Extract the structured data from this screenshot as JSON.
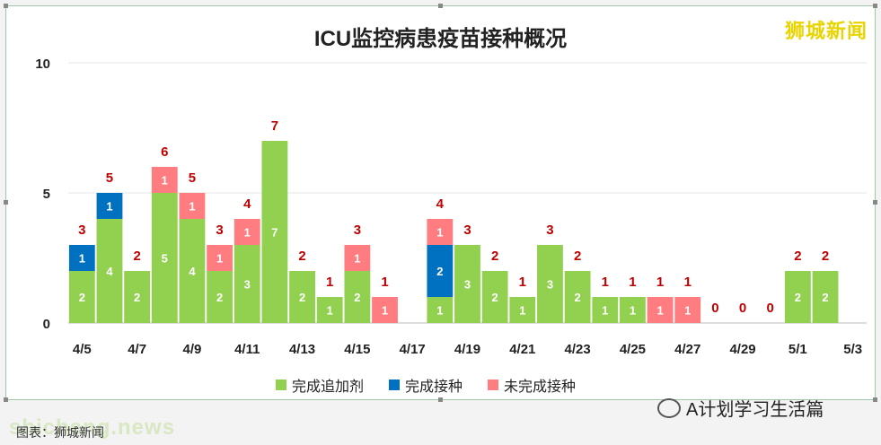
{
  "page": {
    "brand_text": "狮城新闻",
    "wechat_text": "A计划学习生活篇",
    "watermark_text": "shicheng.news",
    "watermark_caption": "图表：狮城新闻"
  },
  "colors": {
    "booster": "#92d050",
    "complete": "#0070c0",
    "incomplete": "#ff7c80",
    "total_label": "#c00000",
    "axis_text": "#222222",
    "grid": "#e6e6e6"
  },
  "chart_data": {
    "type": "bar",
    "stacked": true,
    "title": "ICU监控病患疫苗接种概况",
    "ylim": [
      0,
      10
    ],
    "yticks": [
      0,
      5,
      10
    ],
    "grid": true,
    "legend_position": "bottom",
    "categories": [
      "4/5",
      "4/6",
      "4/7",
      "4/8",
      "4/9",
      "4/10",
      "4/11",
      "4/12",
      "4/13",
      "4/14",
      "4/15",
      "4/16",
      "4/17",
      "4/18",
      "4/19",
      "4/20",
      "4/21",
      "4/22",
      "4/23",
      "4/24",
      "4/25",
      "4/26",
      "4/27",
      "4/28",
      "4/29",
      "4/30",
      "5/1",
      "5/2",
      "5/3"
    ],
    "x_tick_labels": [
      "4/5",
      "4/7",
      "4/9",
      "4/11",
      "4/13",
      "4/15",
      "4/17",
      "4/19",
      "4/21",
      "4/23",
      "4/25",
      "4/27",
      "4/29",
      "5/1",
      "5/3"
    ],
    "series": [
      {
        "name": "完成追加剂",
        "color": "#92d050",
        "values": [
          2,
          4,
          2,
          5,
          4,
          2,
          3,
          7,
          2,
          1,
          2,
          0,
          0,
          1,
          3,
          2,
          1,
          3,
          2,
          1,
          1,
          0,
          0,
          0,
          0,
          0,
          2,
          2,
          0
        ]
      },
      {
        "name": "完成接种",
        "color": "#0070c0",
        "values": [
          1,
          1,
          0,
          0,
          0,
          0,
          0,
          0,
          0,
          0,
          0,
          0,
          0,
          2,
          0,
          0,
          0,
          0,
          0,
          0,
          0,
          0,
          0,
          0,
          0,
          0,
          0,
          0,
          0
        ]
      },
      {
        "name": "未完成接种",
        "color": "#ff7c80",
        "values": [
          0,
          0,
          0,
          1,
          1,
          1,
          1,
          0,
          0,
          0,
          1,
          1,
          0,
          1,
          0,
          0,
          0,
          0,
          0,
          0,
          0,
          1,
          1,
          0,
          0,
          0,
          0,
          0,
          0
        ]
      }
    ],
    "totals": [
      3,
      5,
      2,
      6,
      5,
      3,
      4,
      7,
      2,
      1,
      3,
      1,
      null,
      4,
      3,
      2,
      1,
      3,
      2,
      1,
      1,
      1,
      1,
      0,
      0,
      0,
      2,
      2,
      null
    ]
  }
}
